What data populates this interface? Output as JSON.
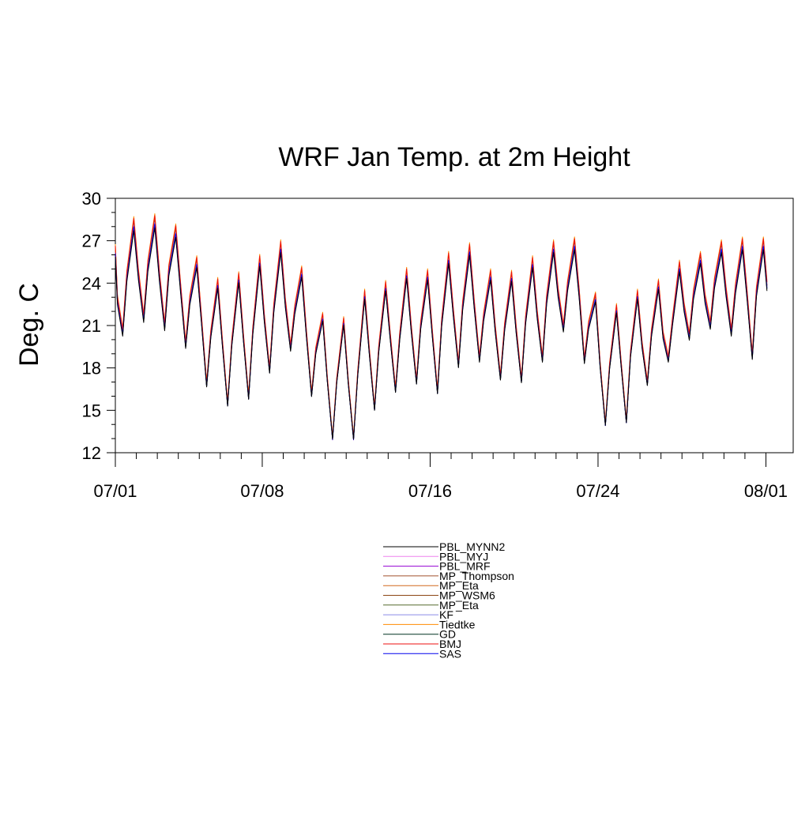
{
  "chart_data": {
    "type": "line",
    "title": "WRF Jan Temp. at 2m Height",
    "xlabel": "",
    "ylabel": "Deg. C",
    "ylim": [
      12,
      30
    ],
    "xlim": [
      0,
      32.3
    ],
    "yticks": [
      12,
      15,
      18,
      21,
      24,
      27,
      30
    ],
    "yminor_step": 1,
    "xticks": [
      {
        "day": 0,
        "label": "07/01"
      },
      {
        "day": 7,
        "label": "07/08"
      },
      {
        "day": 15,
        "label": "07/16"
      },
      {
        "day": 23,
        "label": "07/24"
      },
      {
        "day": 31,
        "label": "08/01"
      }
    ],
    "xminor_step": 1,
    "base_series": {
      "name": "PBL_MYNN2",
      "x_day": [
        0,
        0.1,
        0.35,
        0.55,
        0.88,
        1.1,
        1.35,
        1.55,
        1.88,
        2.1,
        2.35,
        2.55,
        2.88,
        3.1,
        3.35,
        3.55,
        3.88,
        4.1,
        4.35,
        4.55,
        4.88,
        5.1,
        5.35,
        5.55,
        5.88,
        6.1,
        6.35,
        6.55,
        6.88,
        7.1,
        7.35,
        7.55,
        7.88,
        8.1,
        8.35,
        8.55,
        8.88,
        9.1,
        9.35,
        9.55,
        9.88,
        10.1,
        10.35,
        10.55,
        10.88,
        11.1,
        11.35,
        11.55,
        11.88,
        12.1,
        12.35,
        12.55,
        12.88,
        13.1,
        13.35,
        13.55,
        13.88,
        14.1,
        14.35,
        14.55,
        14.88,
        15.1,
        15.35,
        15.55,
        15.88,
        16.1,
        16.35,
        16.55,
        16.88,
        17.1,
        17.35,
        17.55,
        17.88,
        18.1,
        18.35,
        18.55,
        18.88,
        19.1,
        19.35,
        19.55,
        19.88,
        20.1,
        20.35,
        20.55,
        20.88,
        21.1,
        21.35,
        21.55,
        21.88,
        22.1,
        22.35,
        22.55,
        22.88,
        23.1,
        23.35,
        23.55,
        23.88,
        24.1,
        24.35,
        24.55,
        24.88,
        25.1,
        25.35,
        25.55,
        25.88,
        26.1,
        26.35,
        26.55,
        26.88,
        27.1,
        27.35,
        27.55,
        27.88,
        28.1,
        28.35,
        28.55,
        28.88,
        29.1,
        29.35,
        29.55,
        29.88,
        30.1,
        30.35,
        30.55,
        30.88,
        31.05
      ],
      "values": [
        26.3,
        22.8,
        20.5,
        24.5,
        28.2,
        24.6,
        21.5,
        25.2,
        28.4,
        24.5,
        20.9,
        24.9,
        27.7,
        23.8,
        19.6,
        22.8,
        25.5,
        21.5,
        16.8,
        20.4,
        24.0,
        19.8,
        15.4,
        19.8,
        24.4,
        20.2,
        15.9,
        20.6,
        25.6,
        21.5,
        17.8,
        22.2,
        26.6,
        22.6,
        19.4,
        22.1,
        24.8,
        20.5,
        16.1,
        19.2,
        21.6,
        17.2,
        13.0,
        17.1,
        21.3,
        17.0,
        13.0,
        17.6,
        23.2,
        19.2,
        15.1,
        19.3,
        23.8,
        20.2,
        16.4,
        20.2,
        24.7,
        20.8,
        17.0,
        21.0,
        24.6,
        20.5,
        16.3,
        21.2,
        25.8,
        22.0,
        18.2,
        22.4,
        26.4,
        22.5,
        18.6,
        21.6,
        24.6,
        20.8,
        17.3,
        20.9,
        24.5,
        20.7,
        17.1,
        21.4,
        25.5,
        21.8,
        18.6,
        22.8,
        26.6,
        23.3,
        20.8,
        23.8,
        26.8,
        23.3,
        18.5,
        21.0,
        23.0,
        18.2,
        14.0,
        18.1,
        22.2,
        18.3,
        14.2,
        19.0,
        23.2,
        19.6,
        16.9,
        20.5,
        23.9,
        20.3,
        18.6,
        21.3,
        25.2,
        22.3,
        20.2,
        23.2,
        25.8,
        22.9,
        21.0,
        24.0,
        26.6,
        23.4,
        20.5,
        23.6,
        26.8,
        23.2,
        18.8,
        23.4,
        26.8,
        23.8
      ]
    },
    "series": [
      {
        "name": "PBL_MYNN2",
        "color": "#000000",
        "scale": 0.97,
        "offset": -0.3
      },
      {
        "name": "PBL_MYJ",
        "color": "#ee82ee",
        "scale": 1.005,
        "offset": 0.1
      },
      {
        "name": "PBL_MRF",
        "color": "#9400d3",
        "scale": 1.01,
        "offset": 0.0
      },
      {
        "name": "MP_Thompson",
        "color": "#a0522d",
        "scale": 1.0,
        "offset": 0.05
      },
      {
        "name": "MP_Eta",
        "color": "#d2691e",
        "scale": 1.015,
        "offset": 0.2
      },
      {
        "name": "MP_WSM6",
        "color": "#8b4513",
        "scale": 1.0,
        "offset": 0.0
      },
      {
        "name": "MP_Eta",
        "color": "#556b2f",
        "scale": 0.99,
        "offset": -0.1
      },
      {
        "name": "KF",
        "color": "#8a8ae6",
        "scale": 0.995,
        "offset": -0.05
      },
      {
        "name": "Tiedtke",
        "color": "#ff8c00",
        "scale": 1.025,
        "offset": 0.35
      },
      {
        "name": "GD",
        "color": "#013220",
        "scale": 0.985,
        "offset": -0.2
      },
      {
        "name": "BMJ",
        "color": "#ee1111",
        "scale": 1.02,
        "offset": 0.25
      },
      {
        "name": "SAS",
        "color": "#0000ee",
        "scale": 0.99,
        "offset": -0.15
      }
    ],
    "legend": {
      "placement": "below-center",
      "entries": [
        "PBL_MYNN2",
        "PBL_MYJ",
        "PBL_MRF",
        "MP_Thompson",
        "MP_Eta",
        "MP_WSM6",
        "MP_Eta",
        "KF",
        "Tiedtke",
        "GD",
        "BMJ",
        "SAS"
      ]
    },
    "grid": false
  }
}
